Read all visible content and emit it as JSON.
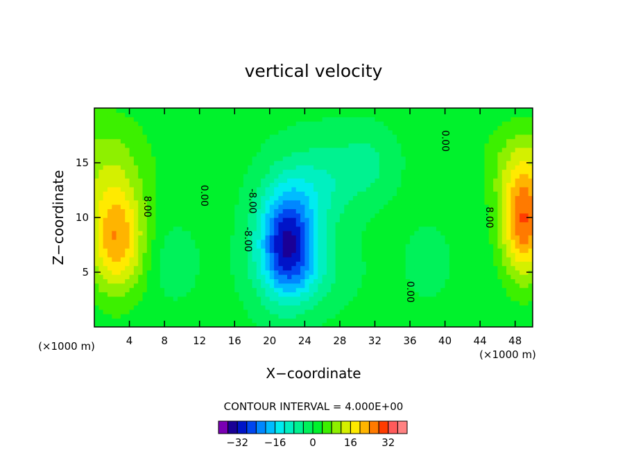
{
  "chart_data": {
    "type": "heatmap",
    "title": "vertical velocity",
    "xlabel": "X−coordinate",
    "ylabel": "Z−coordinate",
    "x_unit": "(×1000 m)",
    "y_unit": "(×1000 m)",
    "xlim": [
      0,
      50
    ],
    "ylim": [
      0,
      20
    ],
    "x_ticks": [
      {
        "value": 4,
        "label": "4"
      },
      {
        "value": 8,
        "label": "8"
      },
      {
        "value": 12,
        "label": "12"
      },
      {
        "value": 16,
        "label": "16"
      },
      {
        "value": 20,
        "label": "20"
      },
      {
        "value": 24,
        "label": "24"
      },
      {
        "value": 28,
        "label": "28"
      },
      {
        "value": 32,
        "label": "32"
      },
      {
        "value": 36,
        "label": "36"
      },
      {
        "value": 40,
        "label": "40"
      },
      {
        "value": 44,
        "label": "44"
      },
      {
        "value": 48,
        "label": "48"
      }
    ],
    "y_ticks": [
      {
        "value": 5,
        "label": "5"
      },
      {
        "value": 10,
        "label": "10"
      },
      {
        "value": 15,
        "label": "15"
      }
    ],
    "contour_interval_text": "CONTOUR INTERVAL = 4.000E+00",
    "contour_labels": [
      {
        "text": "8.00",
        "x": 6.0,
        "z": 11.0,
        "rotate": 90
      },
      {
        "text": "0.00",
        "x": 12.5,
        "z": 12.0,
        "rotate": 90
      },
      {
        "text": "-8.00",
        "x": 17.5,
        "z": 8.0,
        "rotate": 90
      },
      {
        "text": "-8.00",
        "x": 18.0,
        "z": 11.5,
        "rotate": 90
      },
      {
        "text": "0.00",
        "x": 40.0,
        "z": 17.0,
        "rotate": 90
      },
      {
        "text": "8.00",
        "x": 45.0,
        "z": 10.0,
        "rotate": 90
      },
      {
        "text": "0.00",
        "x": 36.0,
        "z": 3.2,
        "rotate": 90
      }
    ],
    "colorbar": {
      "levels": [
        -40,
        -36,
        -32,
        -28,
        -24,
        -20,
        -16,
        -12,
        -8,
        -4,
        0,
        4,
        8,
        12,
        16,
        20,
        24,
        28,
        32,
        36,
        40
      ],
      "tick_labels": [
        {
          "value": -32,
          "label": "−32"
        },
        {
          "value": -16,
          "label": "−16"
        },
        {
          "value": 0,
          "label": "0"
        },
        {
          "value": 16,
          "label": "16"
        },
        {
          "value": 32,
          "label": "32"
        }
      ],
      "colors": [
        "#7a00b4",
        "#1a0096",
        "#0014c8",
        "#0046f0",
        "#0087ff",
        "#00bcff",
        "#00ecf0",
        "#00f0c0",
        "#00f290",
        "#00f25a",
        "#00f22c",
        "#3cf000",
        "#8ef000",
        "#d4f000",
        "#ffea00",
        "#ffb400",
        "#ff7a00",
        "#ff3c00",
        "#ff5a5a",
        "#ff8282"
      ]
    },
    "field_blobs": [
      {
        "x": 22,
        "z": 8,
        "sx": 3.3,
        "sz": 5.0,
        "a": -32
      },
      {
        "x": 26,
        "z": 13,
        "sx": 4.0,
        "sz": 4.0,
        "a": -8
      },
      {
        "x": 31,
        "z": 15,
        "sx": 3.2,
        "sz": 3.0,
        "a": -6
      },
      {
        "x": 24,
        "z": 5,
        "sx": 5.0,
        "sz": 3.0,
        "a": -6
      },
      {
        "x": 2.5,
        "z": 8,
        "sx": 3.2,
        "sz": 5.0,
        "a": 22
      },
      {
        "x": 1,
        "z": 15,
        "sx": 5.5,
        "sz": 5.0,
        "a": 8
      },
      {
        "x": 49,
        "z": 9.5,
        "sx": 2.6,
        "sz": 5.0,
        "a": 26
      },
      {
        "x": 49,
        "z": 15,
        "sx": 4.5,
        "sz": 4.0,
        "a": 8
      },
      {
        "x": 9,
        "z": 6,
        "sx": 2.5,
        "sz": 3.0,
        "a": -4
      },
      {
        "x": 38,
        "z": 6,
        "sx": 2.5,
        "sz": 3.0,
        "a": -3
      }
    ]
  }
}
